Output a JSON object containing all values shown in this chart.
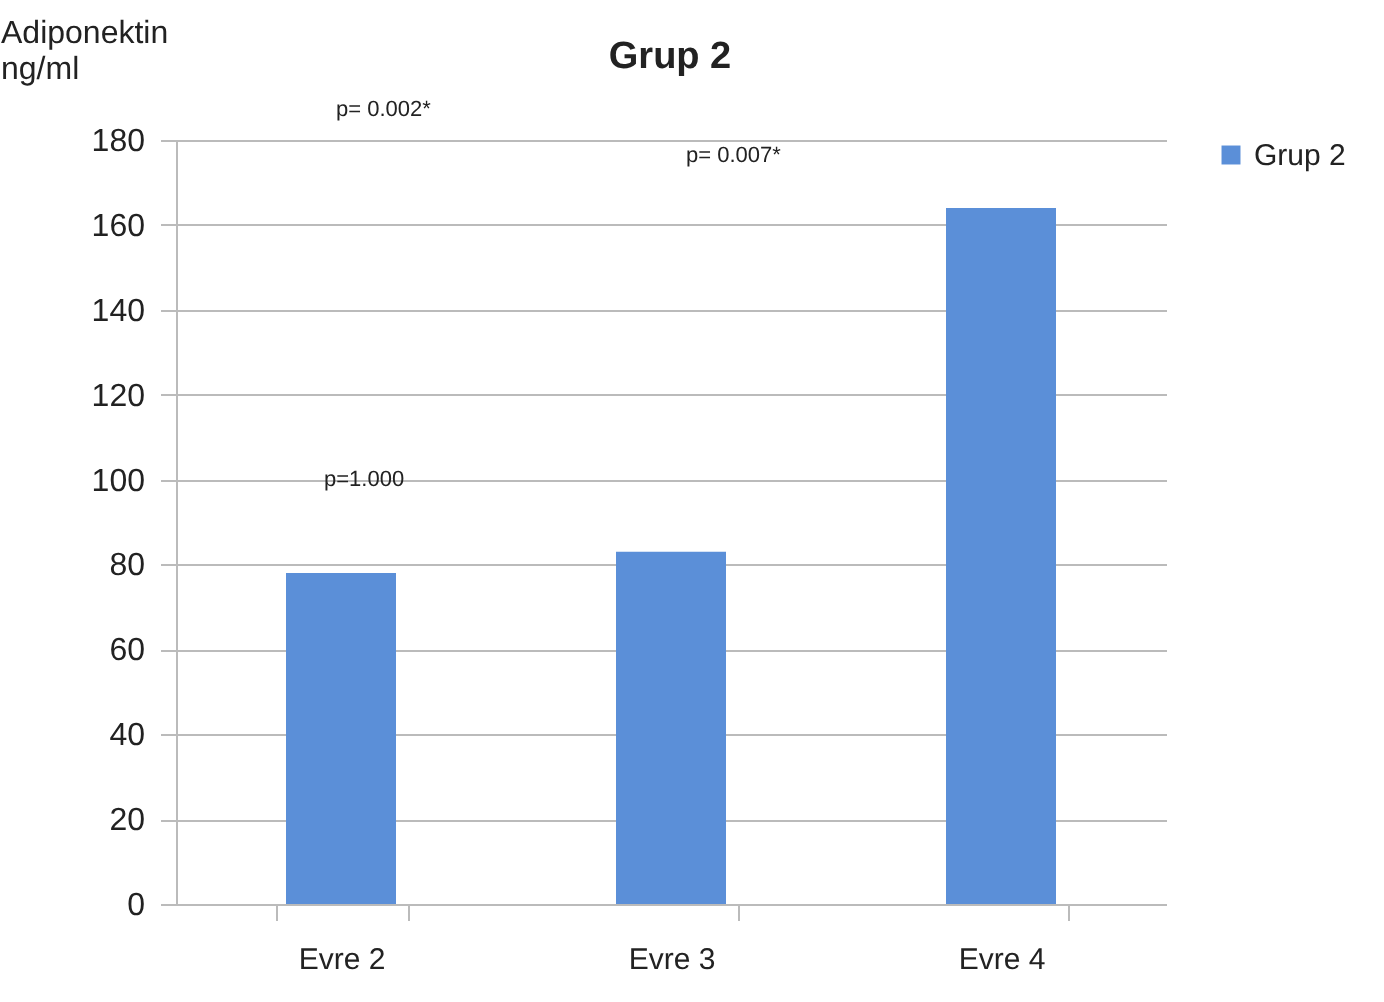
{
  "chart_data": {
    "type": "bar",
    "title": "Grup 2",
    "ylabel": "Adiponektin ng/ml",
    "categories": [
      "Evre 2",
      "Evre 3",
      "Evre 4"
    ],
    "series": [
      {
        "name": "Grup 2",
        "color": "#5b8fd8",
        "values": [
          78,
          83,
          164
        ]
      }
    ],
    "ylim": [
      0,
      180
    ],
    "yticks": [
      0,
      20,
      40,
      60,
      80,
      100,
      120,
      140,
      160,
      180
    ],
    "grid": "y",
    "legend": "right",
    "annotations": [
      "p= 0.002*",
      "p= 0.007*",
      "p=1.000"
    ]
  }
}
